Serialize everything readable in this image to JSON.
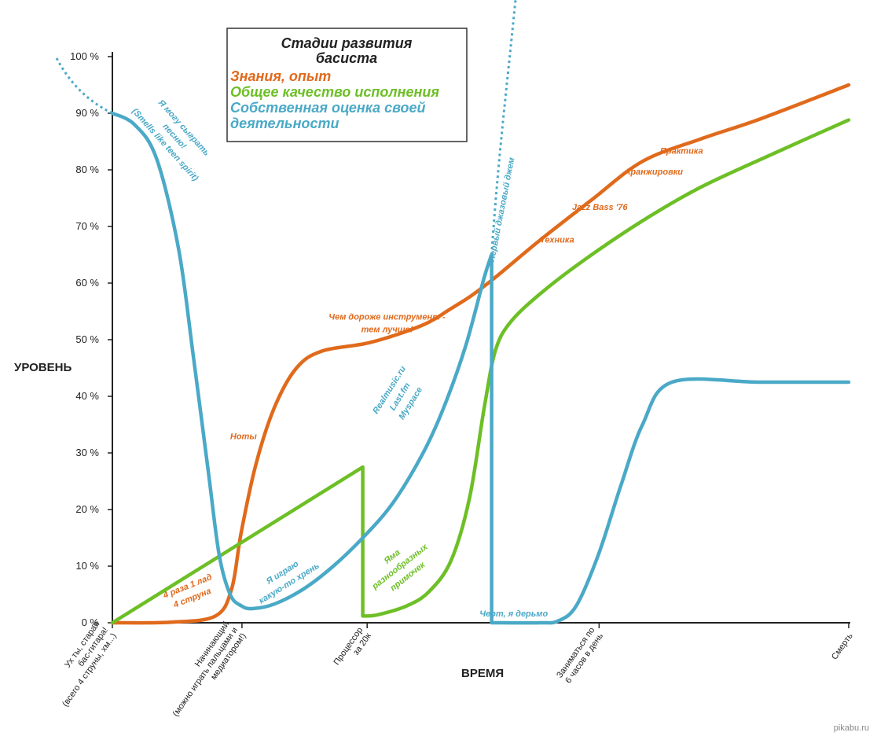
{
  "chart_data": {
    "type": "line",
    "title": "Стадии развития басиста",
    "ylabel": "УРОВЕНЬ",
    "xlabel": "ВРЕМЯ",
    "ylim": [
      0,
      100
    ],
    "y_ticks": [
      "0 %",
      "10 %",
      "20 %",
      "30 %",
      "40 %",
      "50 %",
      "60 %",
      "70 %",
      "80 %",
      "90 %",
      "100 %"
    ],
    "x_categories": [
      {
        "label": "Ух ты, старая бас-гитара! (всего 4 струны, хм...)",
        "lines": [
          "Ух ты, старая",
          "бас-гитара!",
          "(всего 4 струны, хм...)"
        ],
        "x": 0
      },
      {
        "label": "Начинающий (можно играть пальцами и медиатором!)",
        "lines": [
          "Начинающий",
          "(можно играть пальцами и",
          "медиатором!)"
        ],
        "x": 17.6
      },
      {
        "label": "Процессор за 20к",
        "lines": [
          "Процессор",
          "за 20к"
        ],
        "x": 34.6
      },
      {
        "label": "Заниматься по 6 часов в день",
        "lines": [
          "Заниматься по",
          "6 часов в день"
        ],
        "x": 66.1
      },
      {
        "label": "Смерть",
        "lines": [
          "Смерть"
        ],
        "x": 100
      }
    ],
    "series": [
      {
        "name": "Знания, опыт",
        "color": "#e06a1c",
        "points": [
          [
            0,
            0
          ],
          [
            8,
            0.1
          ],
          [
            14,
            1.2
          ],
          [
            16.2,
            6
          ],
          [
            17.5,
            16
          ],
          [
            19.5,
            28
          ],
          [
            22,
            38
          ],
          [
            25,
            45
          ],
          [
            28.5,
            48
          ],
          [
            35,
            49.5
          ],
          [
            42,
            52.5
          ],
          [
            46,
            55.5
          ],
          [
            49,
            58
          ],
          [
            52,
            61
          ],
          [
            58,
            67.5
          ],
          [
            65,
            74.6
          ],
          [
            72,
            81.5
          ],
          [
            80,
            85.5
          ],
          [
            88,
            89
          ],
          [
            100,
            95
          ]
        ]
      },
      {
        "name": "Общее качество исполнения",
        "color": "#6dbf26",
        "points": [
          [
            0,
            0
          ],
          [
            34,
            27.5
          ],
          [
            34,
            1.2
          ],
          [
            36,
            1.4
          ],
          [
            40,
            3
          ],
          [
            43,
            5.5
          ],
          [
            46,
            11
          ],
          [
            48.5,
            22
          ],
          [
            50.5,
            38
          ],
          [
            52,
            48
          ],
          [
            54,
            53
          ],
          [
            58,
            58
          ],
          [
            64,
            64
          ],
          [
            72,
            71
          ],
          [
            80,
            77
          ],
          [
            90,
            83
          ],
          [
            100,
            88.8
          ]
        ]
      },
      {
        "name": "Собственная оценка своей деятельности",
        "color": "#4aa9c7",
        "points": [
          [
            0,
            90
          ],
          [
            3,
            88
          ],
          [
            6,
            82
          ],
          [
            9,
            66
          ],
          [
            11,
            47
          ],
          [
            13,
            27
          ],
          [
            14.5,
            12
          ],
          [
            16,
            5
          ],
          [
            17.5,
            3
          ],
          [
            19,
            2.5
          ],
          [
            22,
            3.3
          ],
          [
            26,
            6
          ],
          [
            30,
            10
          ],
          [
            34,
            15
          ],
          [
            38,
            21
          ],
          [
            42,
            29.5
          ],
          [
            45,
            38
          ],
          [
            48,
            49
          ],
          [
            50.5,
            61
          ],
          [
            51.5,
            65
          ],
          [
            51.5,
            0
          ],
          [
            58,
            0
          ],
          [
            60.5,
            0.3
          ],
          [
            63,
            3
          ],
          [
            66,
            12
          ],
          [
            69,
            24
          ],
          [
            72,
            35
          ],
          [
            76,
            42.5
          ],
          [
            88,
            42.5
          ],
          [
            100,
            42.5
          ]
        ]
      }
    ],
    "legend": {
      "title_lines": [
        "Стадии развития",
        "басиста"
      ],
      "placement": "top-center"
    },
    "annotations": [
      {
        "id": "smells",
        "color_series": 2,
        "lines": [
          "Я могу сыграть",
          "песню!",
          "(Smells like teen spirit)"
        ],
        "x": 8.5,
        "y": 86,
        "rotate": 48
      },
      {
        "id": "4raza",
        "color_series": 0,
        "lines": [
          "4 раза 1 лад",
          "4 струна"
        ],
        "x": 10.5,
        "y": 5.5,
        "rotate": -22
      },
      {
        "id": "noty",
        "color_series": 0,
        "lines": [
          "Ноты"
        ],
        "x": 17.8,
        "y": 33,
        "rotate": 0
      },
      {
        "id": "igrayu",
        "color_series": 2,
        "lines": [
          "Я играю",
          "какую-то хрень"
        ],
        "x": 23.5,
        "y": 8,
        "rotate": -32
      },
      {
        "id": "realmusic",
        "color_series": 2,
        "lines": [
          "Realmusic.ru",
          "Last.fm",
          "Myspace"
        ],
        "x": 39,
        "y": 40,
        "rotate": -58
      },
      {
        "id": "dorozhe",
        "color_series": 0,
        "lines": [
          "Чем дороже инструмент -",
          "тем лучше!"
        ],
        "x": 37.3,
        "y": 53,
        "rotate": 0
      },
      {
        "id": "yama",
        "color_series": 1,
        "lines": [
          "Яма",
          "разнообразных",
          "примочек"
        ],
        "x": 39,
        "y": 10,
        "rotate": -38
      },
      {
        "id": "dzhem",
        "color_series": 2,
        "lines": [
          "Первый джазовый джем"
        ],
        "x": 52.8,
        "y": 73,
        "rotate": -79
      },
      {
        "id": "chert",
        "color_series": 2,
        "lines": [
          "Черт, я дерьмо"
        ],
        "x": 54.5,
        "y": 1.7,
        "rotate": 0
      },
      {
        "id": "tehnika",
        "color_series": 0,
        "lines": [
          "Техника"
        ],
        "x": 60.4,
        "y": 67.7,
        "rotate": 0
      },
      {
        "id": "jazzbass",
        "color_series": 0,
        "lines": [
          "Jazz Bass '76"
        ],
        "x": 66.2,
        "y": 73.5,
        "rotate": 0
      },
      {
        "id": "aranzh",
        "color_series": 0,
        "lines": [
          "Аранжировки"
        ],
        "x": 73.5,
        "y": 79.7,
        "rotate": 0
      },
      {
        "id": "praktika",
        "color_series": 0,
        "lines": [
          "Практика"
        ],
        "x": 77.3,
        "y": 83.4,
        "rotate": 0
      }
    ]
  },
  "watermark": "pikabu.ru"
}
